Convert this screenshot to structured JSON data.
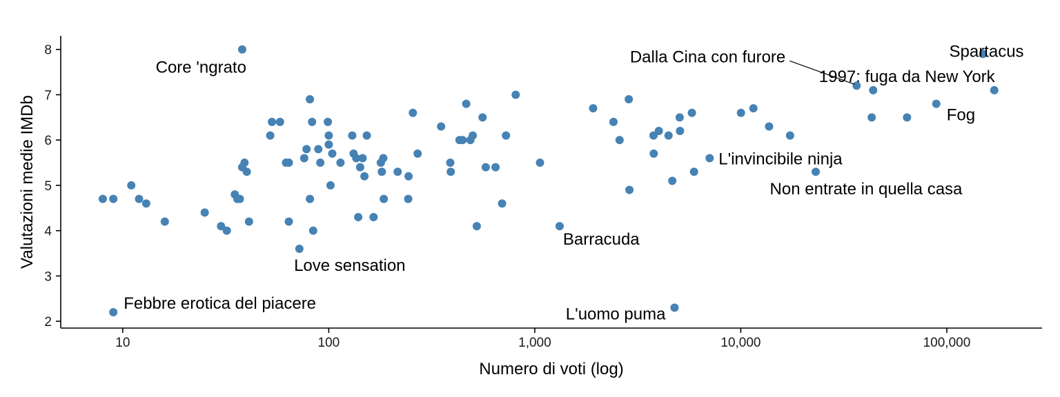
{
  "chart_data": {
    "type": "scatter",
    "title": "",
    "xlabel": "Numero di voti (log)",
    "ylabel": "Valutazioni medie IMDb",
    "x_scale": "log",
    "xlim": [
      5,
      290000
    ],
    "ylim": [
      1.85,
      8.3
    ],
    "x_ticks": [
      10,
      100,
      1000,
      10000,
      100000
    ],
    "x_tick_labels": [
      "10",
      "100",
      "1,000",
      "10,000",
      "100,000"
    ],
    "y_ticks": [
      2,
      3,
      4,
      5,
      6,
      7,
      8
    ],
    "y_tick_labels": [
      "2",
      "3",
      "4",
      "5",
      "6",
      "7",
      "8"
    ],
    "grid": false,
    "point_color": "#4682b4",
    "points": [
      {
        "x": 8,
        "y": 4.7
      },
      {
        "x": 9,
        "y": 4.7
      },
      {
        "x": 9,
        "y": 2.2
      },
      {
        "x": 11,
        "y": 5.0
      },
      {
        "x": 12,
        "y": 4.7
      },
      {
        "x": 13,
        "y": 4.6
      },
      {
        "x": 16,
        "y": 4.2
      },
      {
        "x": 25,
        "y": 4.4
      },
      {
        "x": 30,
        "y": 4.1
      },
      {
        "x": 32,
        "y": 4.0
      },
      {
        "x": 35,
        "y": 4.8
      },
      {
        "x": 36,
        "y": 4.7
      },
      {
        "x": 37,
        "y": 4.7
      },
      {
        "x": 38,
        "y": 8.0
      },
      {
        "x": 38,
        "y": 5.4
      },
      {
        "x": 39,
        "y": 5.5
      },
      {
        "x": 40,
        "y": 5.3
      },
      {
        "x": 41,
        "y": 4.2
      },
      {
        "x": 52,
        "y": 6.1
      },
      {
        "x": 53,
        "y": 6.4
      },
      {
        "x": 58,
        "y": 6.4
      },
      {
        "x": 62,
        "y": 5.5
      },
      {
        "x": 64,
        "y": 5.5
      },
      {
        "x": 64,
        "y": 4.2
      },
      {
        "x": 72,
        "y": 3.6
      },
      {
        "x": 76,
        "y": 5.6
      },
      {
        "x": 78,
        "y": 5.8
      },
      {
        "x": 81,
        "y": 6.9
      },
      {
        "x": 81,
        "y": 4.7
      },
      {
        "x": 83,
        "y": 6.4
      },
      {
        "x": 84,
        "y": 4.0
      },
      {
        "x": 89,
        "y": 5.8
      },
      {
        "x": 91,
        "y": 5.5
      },
      {
        "x": 99,
        "y": 6.4
      },
      {
        "x": 100,
        "y": 6.1
      },
      {
        "x": 100,
        "y": 5.9
      },
      {
        "x": 102,
        "y": 5.0
      },
      {
        "x": 104,
        "y": 5.7
      },
      {
        "x": 114,
        "y": 5.5
      },
      {
        "x": 130,
        "y": 6.1
      },
      {
        "x": 132,
        "y": 5.7
      },
      {
        "x": 136,
        "y": 5.6
      },
      {
        "x": 139,
        "y": 4.3
      },
      {
        "x": 142,
        "y": 5.4
      },
      {
        "x": 146,
        "y": 5.6
      },
      {
        "x": 149,
        "y": 5.2
      },
      {
        "x": 153,
        "y": 6.1
      },
      {
        "x": 165,
        "y": 4.3
      },
      {
        "x": 179,
        "y": 5.5
      },
      {
        "x": 181,
        "y": 5.3
      },
      {
        "x": 184,
        "y": 5.6
      },
      {
        "x": 185,
        "y": 4.7
      },
      {
        "x": 216,
        "y": 5.3
      },
      {
        "x": 243,
        "y": 4.7
      },
      {
        "x": 244,
        "y": 5.2
      },
      {
        "x": 256,
        "y": 6.6
      },
      {
        "x": 270,
        "y": 5.7
      },
      {
        "x": 351,
        "y": 6.3
      },
      {
        "x": 389,
        "y": 5.5
      },
      {
        "x": 391,
        "y": 5.3
      },
      {
        "x": 431,
        "y": 6.0
      },
      {
        "x": 446,
        "y": 6.0
      },
      {
        "x": 465,
        "y": 6.8
      },
      {
        "x": 487,
        "y": 6.0
      },
      {
        "x": 500,
        "y": 6.1
      },
      {
        "x": 523,
        "y": 4.1
      },
      {
        "x": 558,
        "y": 6.5
      },
      {
        "x": 578,
        "y": 5.4
      },
      {
        "x": 645,
        "y": 5.4
      },
      {
        "x": 694,
        "y": 4.6
      },
      {
        "x": 725,
        "y": 6.1
      },
      {
        "x": 808,
        "y": 7.0
      },
      {
        "x": 1060,
        "y": 5.5
      },
      {
        "x": 1320,
        "y": 4.1
      },
      {
        "x": 1920,
        "y": 6.7
      },
      {
        "x": 2410,
        "y": 6.4
      },
      {
        "x": 2580,
        "y": 6.0
      },
      {
        "x": 2860,
        "y": 6.9
      },
      {
        "x": 2880,
        "y": 4.9
      },
      {
        "x": 3770,
        "y": 6.1
      },
      {
        "x": 3780,
        "y": 5.7
      },
      {
        "x": 4000,
        "y": 6.2
      },
      {
        "x": 4460,
        "y": 6.1
      },
      {
        "x": 4650,
        "y": 5.1
      },
      {
        "x": 4770,
        "y": 2.3
      },
      {
        "x": 5050,
        "y": 6.5
      },
      {
        "x": 5070,
        "y": 6.2
      },
      {
        "x": 5790,
        "y": 6.6
      },
      {
        "x": 5930,
        "y": 5.3
      },
      {
        "x": 7060,
        "y": 5.6
      },
      {
        "x": 10020,
        "y": 6.6
      },
      {
        "x": 11510,
        "y": 6.7
      },
      {
        "x": 13720,
        "y": 6.3
      },
      {
        "x": 17350,
        "y": 6.1
      },
      {
        "x": 23100,
        "y": 5.3
      },
      {
        "x": 36500,
        "y": 7.2
      },
      {
        "x": 43900,
        "y": 7.1
      },
      {
        "x": 43200,
        "y": 6.5
      },
      {
        "x": 64100,
        "y": 6.5
      },
      {
        "x": 88900,
        "y": 6.8
      },
      {
        "x": 150000,
        "y": 7.9
      },
      {
        "x": 170000,
        "y": 7.1
      }
    ],
    "annotations": [
      {
        "text": "Core 'ngrato",
        "x": 38,
        "y": 8.0,
        "anchor": "end",
        "dx": 6,
        "dy": 34
      },
      {
        "text": "Spartacus",
        "x": 150000,
        "y": 7.9,
        "anchor": "middle",
        "dx": 5,
        "dy": 4
      },
      {
        "text": "Dalla Cina con furore",
        "x": 36500,
        "y": 7.2,
        "anchor": "end",
        "dx": -103,
        "dy": -34,
        "leader": true
      },
      {
        "text": "1997: fuga da New York",
        "x": 43900,
        "y": 7.1,
        "anchor": "middle",
        "dx": 49,
        "dy": -12
      },
      {
        "text": "Fog",
        "x": 88900,
        "y": 6.8,
        "anchor": "start",
        "dx": 15,
        "dy": 24
      },
      {
        "text": "L'invincibile ninja",
        "x": 7060,
        "y": 5.6,
        "anchor": "start",
        "dx": 13,
        "dy": 9
      },
      {
        "text": "Non entrate in quella casa",
        "x": 23100,
        "y": 5.3,
        "anchor": "middle",
        "dx": 73,
        "dy": 33
      },
      {
        "text": "Barracuda",
        "x": 1320,
        "y": 4.1,
        "anchor": "start",
        "dx": 5,
        "dy": 27
      },
      {
        "text": "Love sensation",
        "x": 72,
        "y": 3.6,
        "anchor": "middle",
        "dx": 73,
        "dy": 32
      },
      {
        "text": "Febbre erotica del piacere",
        "x": 9,
        "y": 2.2,
        "anchor": "start",
        "dx": 15,
        "dy": -5
      },
      {
        "text": "L'uomo puma",
        "x": 4770,
        "y": 2.3,
        "anchor": "end",
        "dx": -13,
        "dy": 17
      }
    ]
  }
}
